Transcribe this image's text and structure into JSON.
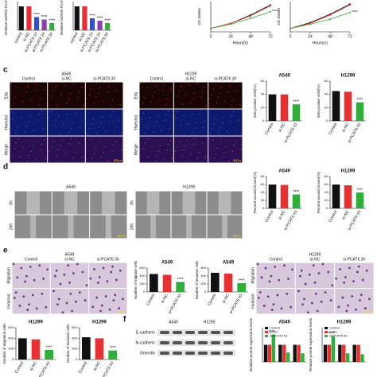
{
  "panel_labels": [
    "c",
    "d",
    "e",
    "f"
  ],
  "image_panels": [
    {
      "title": "A549",
      "columns": [
        "Control",
        "si-NC",
        "si-PCAT6 3#"
      ],
      "rows": [
        "Edu",
        "Hoechst",
        "Merge"
      ],
      "scale": "50um"
    },
    {
      "title": "H1299",
      "columns": [
        "Control",
        "si-NC",
        "si-PCAT6 3#"
      ],
      "rows": [
        "Edu",
        "Hoechst",
        "Merge"
      ],
      "scale": "50um"
    },
    {
      "title": "A549",
      "rows": [
        "0h",
        "24h"
      ],
      "scale": "50um"
    },
    {
      "title": "H1299",
      "rows": [
        "0h",
        "24h"
      ],
      "scale": "50um"
    },
    {
      "title": "A549",
      "columns": [
        "Control",
        "si-NC",
        "si-PCAT6 3#"
      ],
      "rows": [
        "Migration",
        "Invasion"
      ],
      "scale": "50um"
    },
    {
      "title": "H1299",
      "columns": [
        "Control",
        "si-NC",
        "si-PCAT6 3#"
      ],
      "rows": [
        "Migration",
        "Invasion"
      ],
      "scale": "50um"
    }
  ],
  "blot": {
    "cells": [
      "A549",
      "H1299"
    ],
    "proteins": [
      "E-cadherin",
      "N-cadherin",
      "Vimentin"
    ]
  },
  "chart_data": [
    {
      "type": "bar",
      "ylabel": "Relative lncRNA PCAT6",
      "categories": [
        "control",
        "si-NC",
        "si-PCAT6 1#",
        "si-PCAT6 2#",
        "si-PCAT6 3#"
      ],
      "values": [
        1,
        1,
        0.55,
        0.45,
        0.3
      ],
      "colors": [
        "#111111",
        "#e83030",
        "#2e4fd0",
        "#8a3fb0",
        "#2fae3a"
      ],
      "significance": [
        null,
        null,
        "****",
        "****",
        "****"
      ],
      "ylim": [
        0,
        1.2
      ]
    },
    {
      "type": "bar",
      "ylabel": "Relative lncRNA PCAT6",
      "categories": [
        "control",
        "si-NC",
        "si-PCAT6 1#",
        "si-PCAT6 2#",
        "si-PCAT6 3#"
      ],
      "values": [
        1,
        1,
        0.5,
        0.4,
        0.3
      ],
      "colors": [
        "#111111",
        "#e83030",
        "#2e4fd0",
        "#8a3fb0",
        "#2fae3a"
      ],
      "significance": [
        null,
        null,
        "****",
        "****",
        "****"
      ],
      "ylim": [
        0,
        1.2
      ]
    },
    {
      "type": "line",
      "ylabel": "OD 450nm",
      "xlabel": "Hours(s)",
      "x": [
        0,
        24,
        48,
        72
      ],
      "xlim": [
        0,
        72
      ],
      "xticks": [
        0,
        24,
        48,
        72
      ],
      "ylim": [
        0,
        1.8
      ],
      "annotation": "****",
      "series": [
        {
          "color": "#111111",
          "values": [
            0.2,
            0.5,
            1.0,
            1.6
          ]
        },
        {
          "color": "#e83030",
          "values": [
            0.2,
            0.5,
            0.95,
            1.55
          ]
        },
        {
          "color": "#2fae3a",
          "values": [
            0.2,
            0.45,
            0.8,
            1.2
          ]
        }
      ]
    },
    {
      "type": "line",
      "ylabel": "OD 450nm",
      "xlabel": "Hours(s)",
      "x": [
        0,
        24,
        48,
        72
      ],
      "xlim": [
        0,
        72
      ],
      "xticks": [
        0,
        24,
        48,
        72
      ],
      "ylim": [
        0,
        1.8
      ],
      "annotation": "****",
      "series": [
        {
          "color": "#111111",
          "values": [
            0.2,
            0.55,
            1.05,
            1.65
          ]
        },
        {
          "color": "#e83030",
          "values": [
            0.2,
            0.5,
            1.0,
            1.6
          ]
        },
        {
          "color": "#2fae3a",
          "values": [
            0.2,
            0.45,
            0.75,
            1.15
          ]
        }
      ]
    },
    {
      "type": "bar",
      "title": "A549",
      "ylabel": "Edu positive cells(%)",
      "categories": [
        "Control",
        "si-NC",
        "si-PCAT6 #3"
      ],
      "values": [
        40,
        40,
        25
      ],
      "colors": [
        "#111111",
        "#e83030",
        "#2fae3a"
      ],
      "significance": [
        null,
        null,
        "****"
      ],
      "ylim": [
        0,
        60
      ],
      "yticks": [
        0,
        20,
        40,
        60
      ]
    },
    {
      "type": "bar",
      "title": "H1299",
      "ylabel": "Edu positive cells(%)",
      "categories": [
        "Control",
        "si-NC",
        "si-PCAT6 #3"
      ],
      "values": [
        45,
        44,
        28
      ],
      "colors": [
        "#111111",
        "#e83030",
        "#2fae3a"
      ],
      "significance": [
        null,
        null,
        "****"
      ],
      "ylim": [
        0,
        60
      ],
      "yticks": [
        0,
        20,
        40,
        60
      ]
    },
    {
      "type": "bar",
      "title": "A549",
      "ylabel": "Percent wound closure(%)",
      "categories": [
        "Control",
        "si-NC",
        "si-PCAT6 #3"
      ],
      "values": [
        60,
        59,
        35
      ],
      "colors": [
        "#111111",
        "#e83030",
        "#2fae3a"
      ],
      "significance": [
        null,
        null,
        "****"
      ],
      "ylim": [
        0,
        80
      ],
      "yticks": [
        0,
        20,
        40,
        60,
        80
      ]
    },
    {
      "type": "bar",
      "title": "H1299",
      "ylabel": "Percent wound closure(%)",
      "categories": [
        "Control",
        "si-NC",
        "si-PCAT6 #3"
      ],
      "values": [
        60,
        58,
        40
      ],
      "colors": [
        "#111111",
        "#e83030",
        "#2fae3a"
      ],
      "significance": [
        null,
        null,
        "****"
      ],
      "ylim": [
        0,
        80
      ],
      "yticks": [
        0,
        20,
        40,
        60,
        80
      ]
    },
    {
      "type": "bar",
      "title": "A549",
      "ylabel": "Number of migratie cells",
      "categories": [
        "Control",
        "si-NC",
        "si-PCAT6 #3"
      ],
      "values": [
        450,
        430,
        250
      ],
      "colors": [
        "#111111",
        "#e83030",
        "#2fae3a"
      ],
      "significance": [
        null,
        null,
        "****"
      ],
      "ylim": [
        0,
        600
      ],
      "yticks": [
        0,
        200,
        400,
        600
      ]
    },
    {
      "type": "bar",
      "title": "A549",
      "ylabel": "Number of invasive cells",
      "categories": [
        "Control",
        "si-NC",
        "si-PCAT6 #3"
      ],
      "values": [
        480,
        460,
        220
      ],
      "colors": [
        "#111111",
        "#e83030",
        "#2fae3a"
      ],
      "significance": [
        null,
        null,
        "****"
      ],
      "ylim": [
        0,
        600
      ],
      "yticks": [
        0,
        200,
        400,
        600
      ]
    },
    {
      "type": "bar",
      "title": "H1299",
      "ylabel": "Number of migration cells",
      "categories": [
        "Control",
        "si-NC",
        "si-PCAT6 #3"
      ],
      "values": [
        400,
        380,
        180
      ],
      "colors": [
        "#111111",
        "#e83030",
        "#2fae3a"
      ],
      "significance": [
        null,
        null,
        "****"
      ],
      "ylim": [
        0,
        600
      ],
      "yticks": [
        0,
        200,
        400,
        600
      ]
    },
    {
      "type": "bar",
      "title": "H1299",
      "ylabel": "Number of invasive cells",
      "categories": [
        "Control",
        "si-NC",
        "si-PCAT6 #3"
      ],
      "values": [
        420,
        400,
        170
      ],
      "colors": [
        "#111111",
        "#e83030",
        "#2fae3a"
      ],
      "significance": [
        null,
        null,
        "****"
      ],
      "ylim": [
        0,
        600
      ],
      "yticks": [
        0,
        200,
        400,
        600
      ]
    },
    {
      "type": "grouped_bar",
      "title": "A549",
      "ylabel": "Relative protein expression levels",
      "categories": [
        null,
        null,
        null
      ],
      "ylim": [
        0,
        2
      ],
      "series": [
        {
          "name": "Control",
          "color": "#111111",
          "values": [
            1,
            1,
            1
          ]
        },
        {
          "name": "si-NC",
          "color": "#e83030",
          "values": [
            1,
            1,
            1
          ]
        },
        {
          "name": "si-PCAT6 #3",
          "color": "#2fae3a",
          "values": [
            1.6,
            0.55,
            0.5
          ]
        }
      ],
      "significance": "****"
    },
    {
      "type": "grouped_bar",
      "title": "H1299",
      "ylabel": "Relative protein expression levels",
      "categories": [
        null,
        null,
        null
      ],
      "ylim": [
        0,
        2
      ],
      "series": [
        {
          "name": "Control",
          "color": "#111111",
          "values": [
            1,
            1,
            1
          ]
        },
        {
          "name": "si-NC",
          "color": "#e83030",
          "values": [
            1,
            1,
            1
          ]
        },
        {
          "name": "si-PCAT6 #3",
          "color": "#2fae3a",
          "values": [
            1.5,
            0.5,
            0.45
          ]
        }
      ],
      "significance": "****"
    }
  ]
}
